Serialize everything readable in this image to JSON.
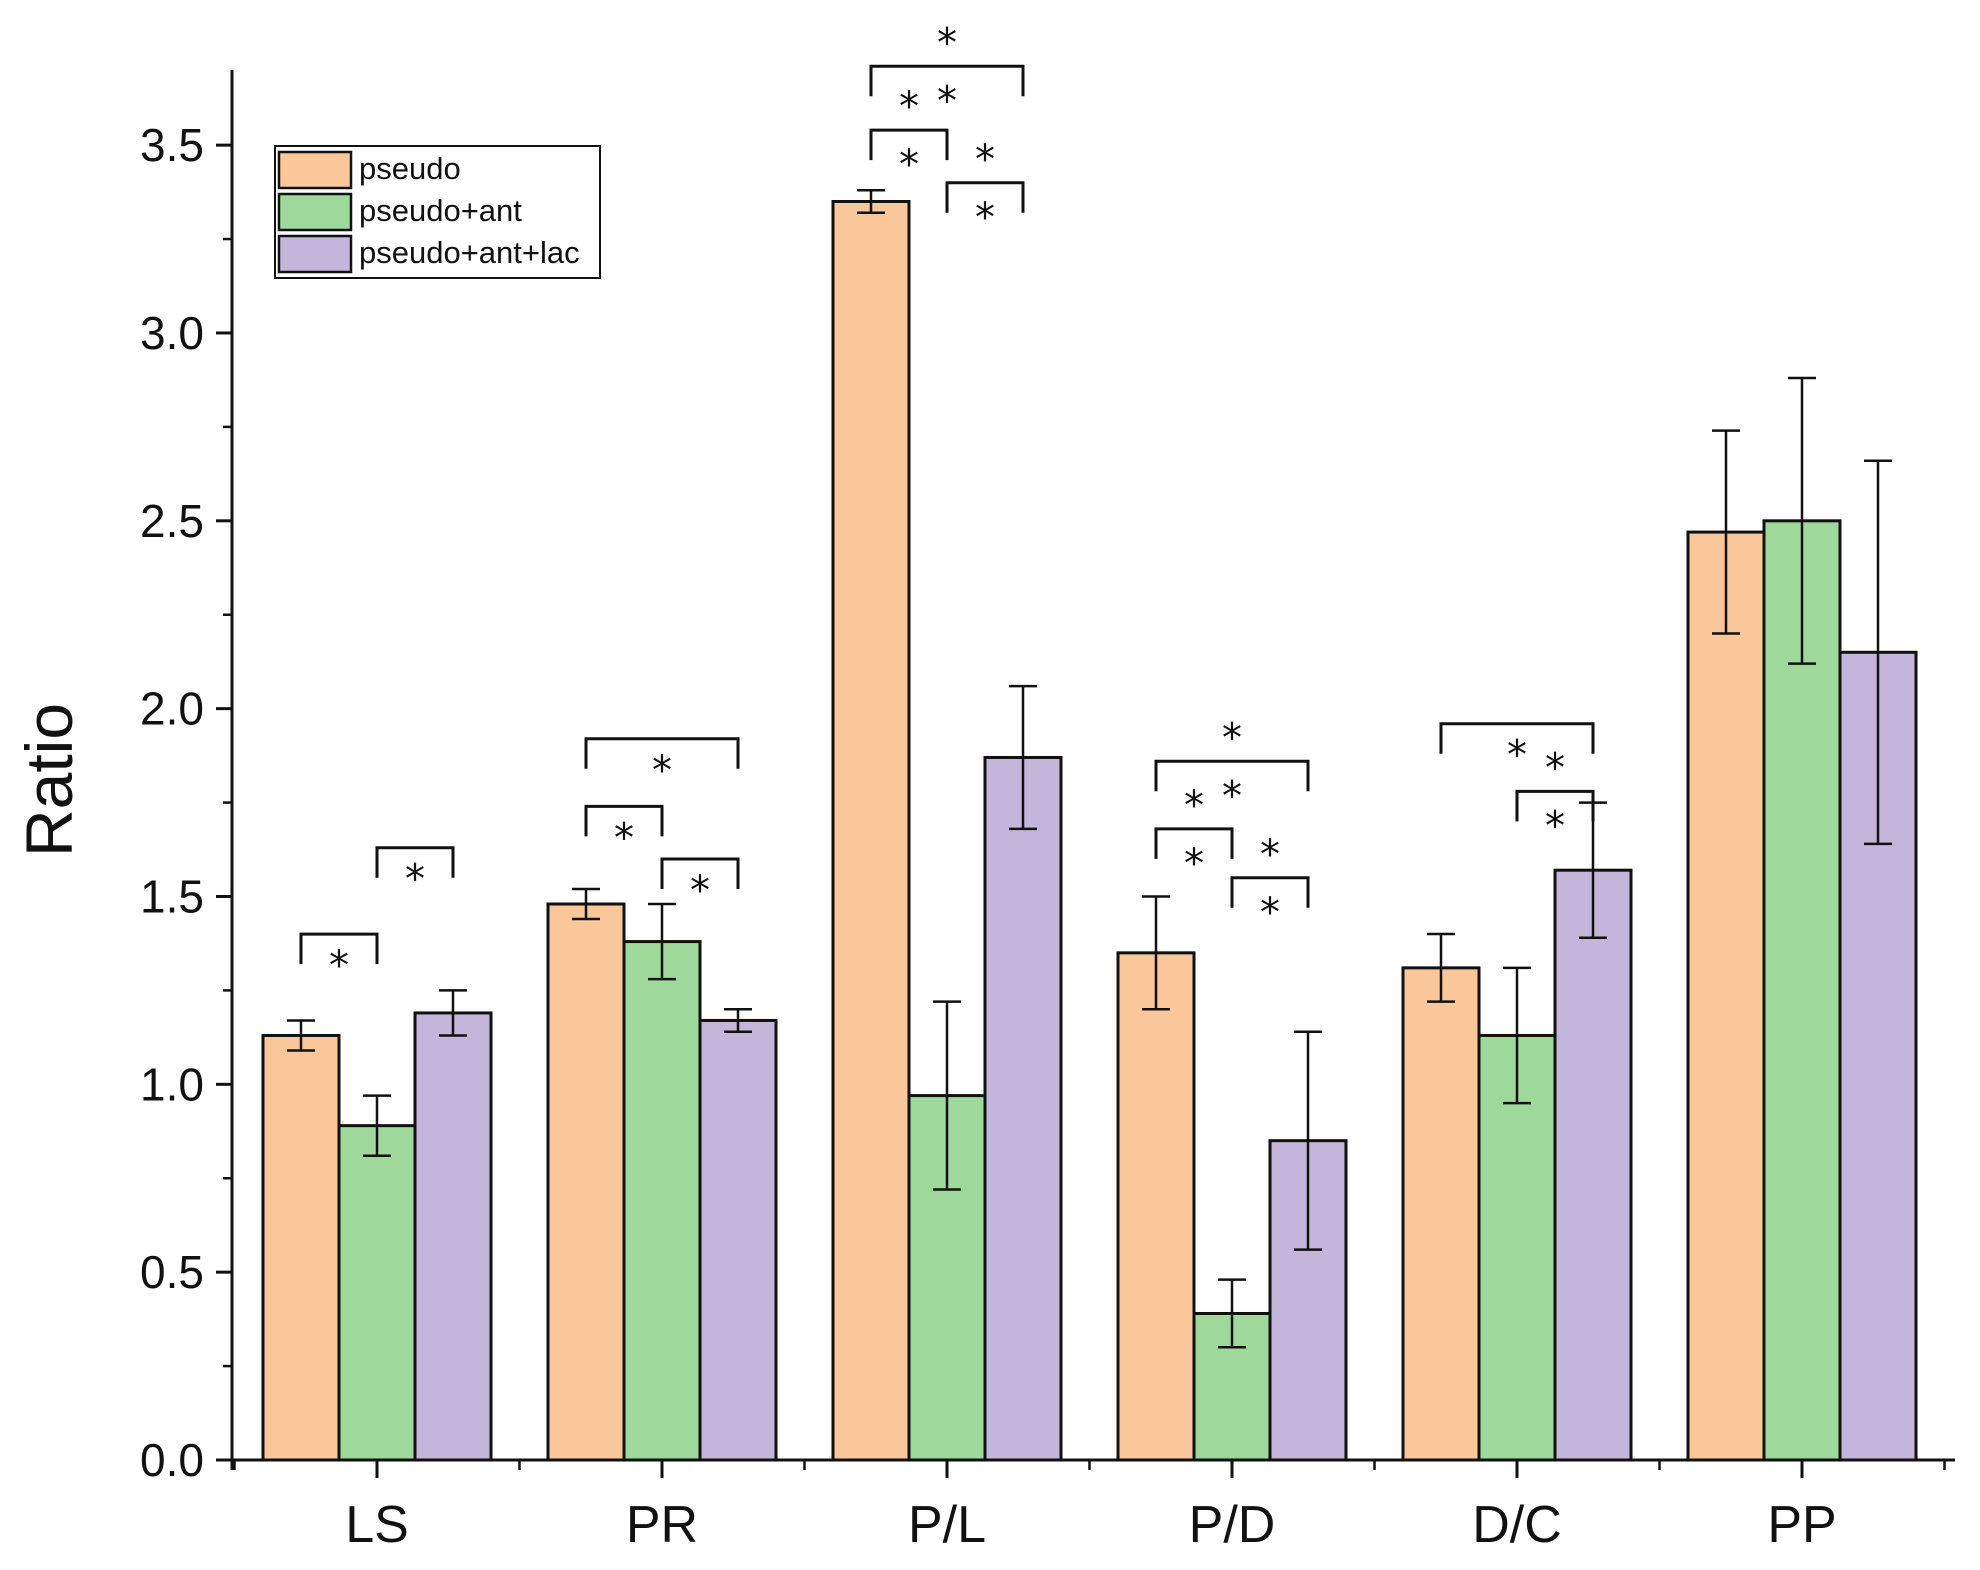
{
  "chart_data": {
    "type": "bar",
    "ylabel": "Ratio",
    "ylim": [
      0,
      3.7
    ],
    "yticks": [
      "0.0",
      "0.5",
      "1.0",
      "1.5",
      "2.0",
      "2.5",
      "3.0",
      "3.5"
    ],
    "categories": [
      "LS",
      "PR",
      "P/L",
      "P/D",
      "D/C",
      "PP"
    ],
    "legend_position": "top-left",
    "grid": false,
    "series": [
      {
        "name": "pseudo",
        "color": "#f9c79a",
        "values": [
          1.13,
          1.48,
          3.35,
          1.35,
          1.31,
          2.47
        ],
        "errors": [
          0.04,
          0.04,
          0.03,
          0.15,
          0.09,
          0.27
        ]
      },
      {
        "name": "pseudo+ant",
        "color": "#9ed89b",
        "values": [
          0.89,
          1.38,
          0.97,
          0.39,
          1.13,
          2.5
        ],
        "errors": [
          0.08,
          0.1,
          0.25,
          0.09,
          0.18,
          0.38
        ]
      },
      {
        "name": "pseudo+ant+lac",
        "color": "#c4b5da",
        "values": [
          1.19,
          1.17,
          1.87,
          0.85,
          1.57,
          2.15
        ],
        "errors": [
          0.06,
          0.03,
          0.19,
          0.29,
          0.18,
          0.51
        ]
      }
    ],
    "significance": [
      {
        "category": "LS",
        "from": 0,
        "to": 1,
        "base": 1.32,
        "label": "*"
      },
      {
        "category": "LS",
        "from": 1,
        "to": 2,
        "base": 1.55,
        "label": "*"
      },
      {
        "category": "PR",
        "from": 0,
        "to": 1,
        "base": 1.66,
        "label": "*"
      },
      {
        "category": "PR",
        "from": 1,
        "to": 2,
        "base": 1.52,
        "label": "*"
      },
      {
        "category": "PR",
        "from": 0,
        "to": 2,
        "base": 1.84,
        "label": "*"
      },
      {
        "category": "P/L",
        "from": 0,
        "to": 1,
        "base": 3.46,
        "label": "* *"
      },
      {
        "category": "P/L",
        "from": 1,
        "to": 2,
        "base": 3.32,
        "label": "* *"
      },
      {
        "category": "P/L",
        "from": 0,
        "to": 2,
        "base": 3.63,
        "label": "* *"
      },
      {
        "category": "P/D",
        "from": 0,
        "to": 1,
        "base": 1.6,
        "label": "* *"
      },
      {
        "category": "P/D",
        "from": 1,
        "to": 2,
        "base": 1.47,
        "label": "* *"
      },
      {
        "category": "P/D",
        "from": 0,
        "to": 2,
        "base": 1.78,
        "label": "* *"
      },
      {
        "category": "D/C",
        "from": 1,
        "to": 2,
        "base": 1.7,
        "label": "* *"
      },
      {
        "category": "D/C",
        "from": 0,
        "to": 2,
        "base": 1.88,
        "label": "*"
      }
    ]
  }
}
